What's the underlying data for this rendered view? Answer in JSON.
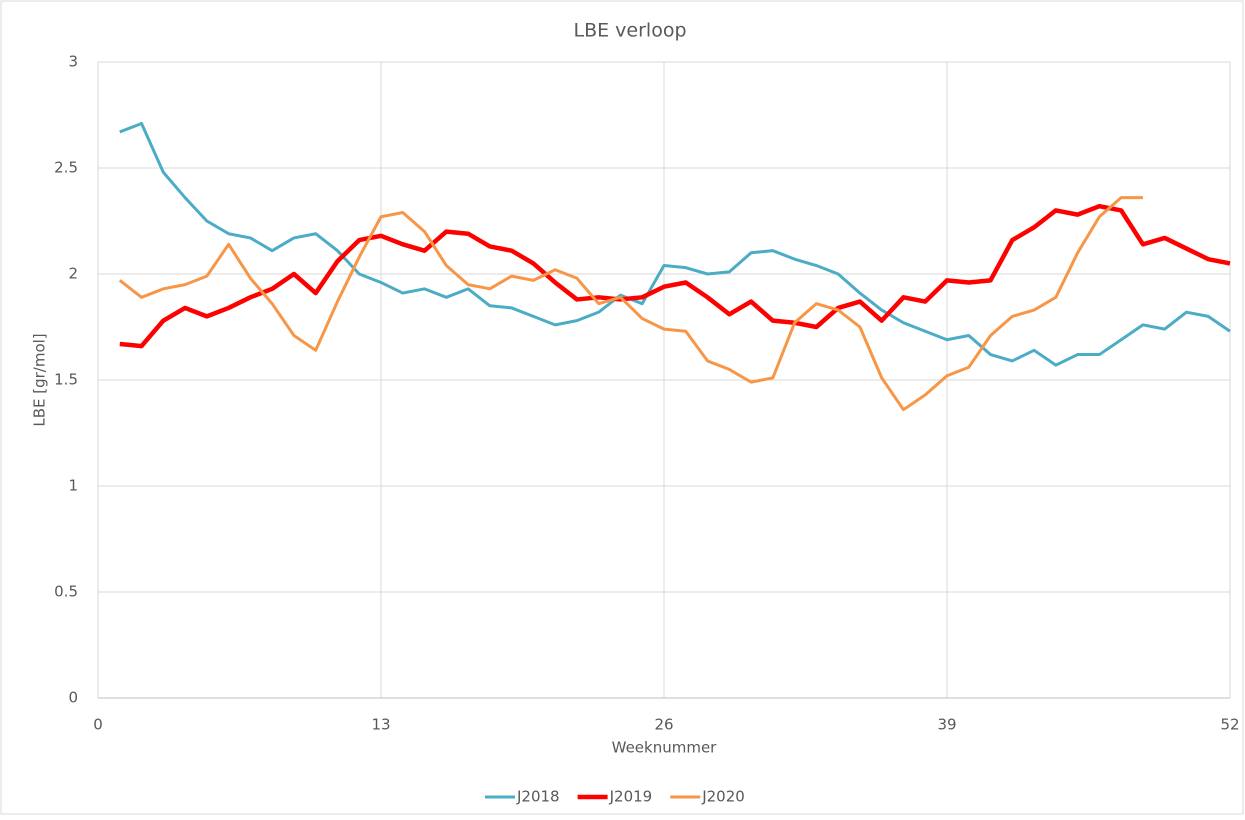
{
  "chart_data": {
    "type": "line",
    "title": "LBE verloop",
    "x_label": "Weeknummer",
    "y_label": "LBE [gr/mol]",
    "x": [
      1,
      2,
      3,
      4,
      5,
      6,
      7,
      8,
      9,
      10,
      11,
      12,
      13,
      14,
      15,
      16,
      17,
      18,
      19,
      20,
      21,
      22,
      23,
      24,
      25,
      26,
      27,
      28,
      29,
      30,
      31,
      32,
      33,
      34,
      35,
      36,
      37,
      38,
      39,
      40,
      41,
      42,
      43,
      44,
      45,
      46,
      47,
      48,
      49,
      50,
      51,
      52
    ],
    "series": [
      {
        "name": "J2018",
        "color": "#4bacc6",
        "line_width": 3,
        "values": [
          2.67,
          2.71,
          2.48,
          2.36,
          2.25,
          2.19,
          2.17,
          2.11,
          2.17,
          2.19,
          2.11,
          2.0,
          1.96,
          1.91,
          1.93,
          1.89,
          1.93,
          1.85,
          1.84,
          1.8,
          1.76,
          1.78,
          1.82,
          1.9,
          1.86,
          2.04,
          2.03,
          2.0,
          2.01,
          2.1,
          2.11,
          2.07,
          2.04,
          2.0,
          1.91,
          1.83,
          1.77,
          1.73,
          1.69,
          1.71,
          1.62,
          1.59,
          1.64,
          1.57,
          1.62,
          1.62,
          1.69,
          1.76,
          1.74,
          1.82,
          1.8,
          1.73
        ]
      },
      {
        "name": "J2019",
        "color": "#ff0000",
        "line_width": 4.5,
        "values": [
          1.67,
          1.66,
          1.78,
          1.84,
          1.8,
          1.84,
          1.89,
          1.93,
          2.0,
          1.91,
          2.06,
          2.16,
          2.18,
          2.14,
          2.11,
          2.2,
          2.19,
          2.13,
          2.11,
          2.05,
          1.96,
          1.88,
          1.89,
          1.88,
          1.89,
          1.94,
          1.96,
          1.89,
          1.81,
          1.87,
          1.78,
          1.77,
          1.75,
          1.84,
          1.87,
          1.78,
          1.89,
          1.87,
          1.97,
          1.96,
          1.97,
          2.16,
          2.22,
          2.3,
          2.28,
          2.32,
          2.3,
          2.14,
          2.17,
          2.12,
          2.07,
          2.05
        ]
      },
      {
        "name": "J2020",
        "color": "#f79646",
        "line_width": 3,
        "values": [
          1.97,
          1.89,
          1.93,
          1.95,
          1.99,
          2.14,
          1.98,
          1.86,
          1.71,
          1.64,
          1.87,
          2.08,
          2.27,
          2.29,
          2.2,
          2.04,
          1.95,
          1.93,
          1.99,
          1.97,
          2.02,
          1.98,
          1.86,
          1.89,
          1.79,
          1.74,
          1.73,
          1.59,
          1.55,
          1.49,
          1.51,
          1.77,
          1.86,
          1.83,
          1.75,
          1.51,
          1.36,
          1.43,
          1.52,
          1.56,
          1.71,
          1.8,
          1.83,
          1.89,
          2.1,
          2.27,
          2.36,
          2.36,
          null,
          null,
          null,
          null
        ]
      }
    ],
    "xlim": [
      0,
      52
    ],
    "xticks": [
      0,
      13,
      26,
      39,
      52
    ],
    "ylim": [
      0,
      3
    ],
    "yticks": [
      0,
      0.5,
      1,
      1.5,
      2,
      2.5,
      3
    ],
    "grid": true,
    "legend": "bottom"
  }
}
